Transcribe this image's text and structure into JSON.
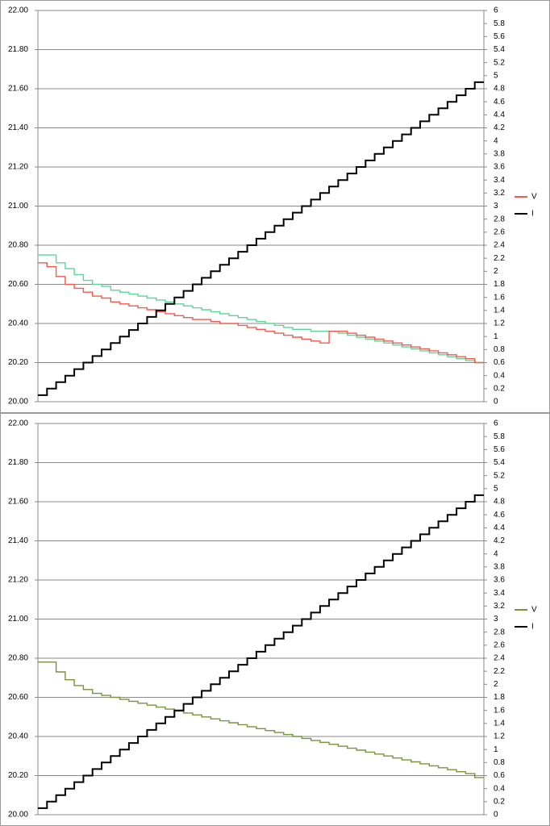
{
  "chart_data": [
    {
      "type": "line",
      "step": true,
      "grid": true,
      "legend": "right",
      "ylim": [
        20,
        22
      ],
      "yticks": [
        {
          "value": 20,
          "label": "20.00"
        },
        {
          "value": 20.2,
          "label": "20.20"
        },
        {
          "value": 20.4,
          "label": "20.40"
        },
        {
          "value": 20.6,
          "label": "20.60"
        },
        {
          "value": 20.8,
          "label": "20.80"
        },
        {
          "value": 21,
          "label": "21.00"
        },
        {
          "value": 21.2,
          "label": "21.20"
        },
        {
          "value": 21.4,
          "label": "21.40"
        },
        {
          "value": 21.6,
          "label": "21.60"
        },
        {
          "value": 21.8,
          "label": "21.80"
        },
        {
          "value": 22,
          "label": "22.00"
        }
      ],
      "y2lim": [
        0,
        6
      ],
      "y2ticks": [
        0,
        0.2,
        0.4,
        0.6,
        0.8,
        1,
        1.2,
        1.4,
        1.6,
        1.8,
        2,
        2.2,
        2.4,
        2.6,
        2.8,
        3,
        3.2,
        3.4,
        3.6,
        3.8,
        4,
        4.2,
        4.4,
        4.6,
        4.8,
        5,
        5.2,
        5.4,
        5.6,
        5.8,
        6
      ],
      "series": [
        {
          "color": "#5fd49a",
          "values": [
            20.75,
            20.75,
            20.71,
            20.68,
            20.65,
            20.62,
            20.6,
            20.59,
            20.57,
            20.56,
            20.55,
            20.54,
            20.53,
            20.52,
            20.51,
            20.5,
            20.49,
            20.48,
            20.47,
            20.46,
            20.45,
            20.44,
            20.43,
            20.42,
            20.41,
            20.4,
            20.39,
            20.38,
            20.37,
            20.37,
            20.36,
            20.36,
            20.36,
            20.35,
            20.34,
            20.33,
            20.32,
            20.31,
            20.3,
            20.29,
            20.28,
            20.27,
            20.26,
            20.25,
            20.24,
            20.23,
            20.22,
            20.21,
            20.2
          ]
        },
        {
          "name": "V",
          "color": "#f05a50",
          "values": [
            20.71,
            20.69,
            20.64,
            20.6,
            20.58,
            20.56,
            20.54,
            20.53,
            20.51,
            20.5,
            20.49,
            20.48,
            20.47,
            20.46,
            20.45,
            20.44,
            20.43,
            20.42,
            20.42,
            20.41,
            20.4,
            20.4,
            20.39,
            20.38,
            20.37,
            20.36,
            20.35,
            20.34,
            20.33,
            20.32,
            20.31,
            20.3,
            20.36,
            20.36,
            20.35,
            20.34,
            20.33,
            20.32,
            20.31,
            20.3,
            20.29,
            20.28,
            20.27,
            20.26,
            20.25,
            20.24,
            20.23,
            20.22,
            20.2
          ]
        },
        {
          "name": "I",
          "color": "#000000",
          "axis": "y2",
          "values": [
            0.1,
            0.2,
            0.3,
            0.4,
            0.5,
            0.6,
            0.7,
            0.8,
            0.9,
            1,
            1.1,
            1.2,
            1.3,
            1.4,
            1.5,
            1.6,
            1.7,
            1.8,
            1.9,
            2,
            2.1,
            2.2,
            2.3,
            2.4,
            2.5,
            2.6,
            2.7,
            2.8,
            2.9,
            3,
            3.1,
            3.2,
            3.3,
            3.4,
            3.5,
            3.6,
            3.7,
            3.8,
            3.9,
            4,
            4.1,
            4.2,
            4.3,
            4.4,
            4.5,
            4.6,
            4.7,
            4.8,
            4.9
          ]
        }
      ]
    },
    {
      "type": "line",
      "step": true,
      "grid": true,
      "legend": "right",
      "ylim": [
        20,
        22
      ],
      "yticks": [
        {
          "value": 20,
          "label": "20.00"
        },
        {
          "value": 20.2,
          "label": "20.20"
        },
        {
          "value": 20.4,
          "label": "20.40"
        },
        {
          "value": 20.6,
          "label": "20.60"
        },
        {
          "value": 20.8,
          "label": "20.80"
        },
        {
          "value": 21,
          "label": "21.00"
        },
        {
          "value": 21.2,
          "label": "21.20"
        },
        {
          "value": 21.4,
          "label": "21.40"
        },
        {
          "value": 21.6,
          "label": "21.60"
        },
        {
          "value": 21.8,
          "label": "21.80"
        },
        {
          "value": 22,
          "label": "22.00"
        }
      ],
      "y2lim": [
        0,
        6
      ],
      "y2ticks": [
        0,
        0.2,
        0.4,
        0.6,
        0.8,
        1,
        1.2,
        1.4,
        1.6,
        1.8,
        2,
        2.2,
        2.4,
        2.6,
        2.8,
        3,
        3.2,
        3.4,
        3.6,
        3.8,
        4,
        4.2,
        4.4,
        4.6,
        4.8,
        5,
        5.2,
        5.4,
        5.6,
        5.8,
        6
      ],
      "series": [
        {
          "name": "V",
          "color": "#77933c",
          "values": [
            20.78,
            20.78,
            20.73,
            20.69,
            20.66,
            20.64,
            20.62,
            20.61,
            20.6,
            20.59,
            20.58,
            20.57,
            20.56,
            20.55,
            20.54,
            20.53,
            20.52,
            20.51,
            20.5,
            20.49,
            20.48,
            20.47,
            20.46,
            20.45,
            20.44,
            20.43,
            20.42,
            20.41,
            20.4,
            20.39,
            20.38,
            20.37,
            20.36,
            20.35,
            20.34,
            20.33,
            20.32,
            20.31,
            20.3,
            20.29,
            20.28,
            20.27,
            20.26,
            20.25,
            20.24,
            20.23,
            20.22,
            20.21,
            20.19
          ]
        },
        {
          "name": "I",
          "color": "#000000",
          "axis": "y2",
          "values": [
            0.1,
            0.2,
            0.3,
            0.4,
            0.5,
            0.6,
            0.7,
            0.8,
            0.9,
            1,
            1.1,
            1.2,
            1.3,
            1.4,
            1.5,
            1.6,
            1.7,
            1.8,
            1.9,
            2,
            2.1,
            2.2,
            2.3,
            2.4,
            2.5,
            2.6,
            2.7,
            2.8,
            2.9,
            3,
            3.1,
            3.2,
            3.3,
            3.4,
            3.5,
            3.6,
            3.7,
            3.8,
            3.9,
            4,
            4.1,
            4.2,
            4.3,
            4.4,
            4.5,
            4.6,
            4.7,
            4.8,
            4.9
          ]
        }
      ]
    }
  ]
}
